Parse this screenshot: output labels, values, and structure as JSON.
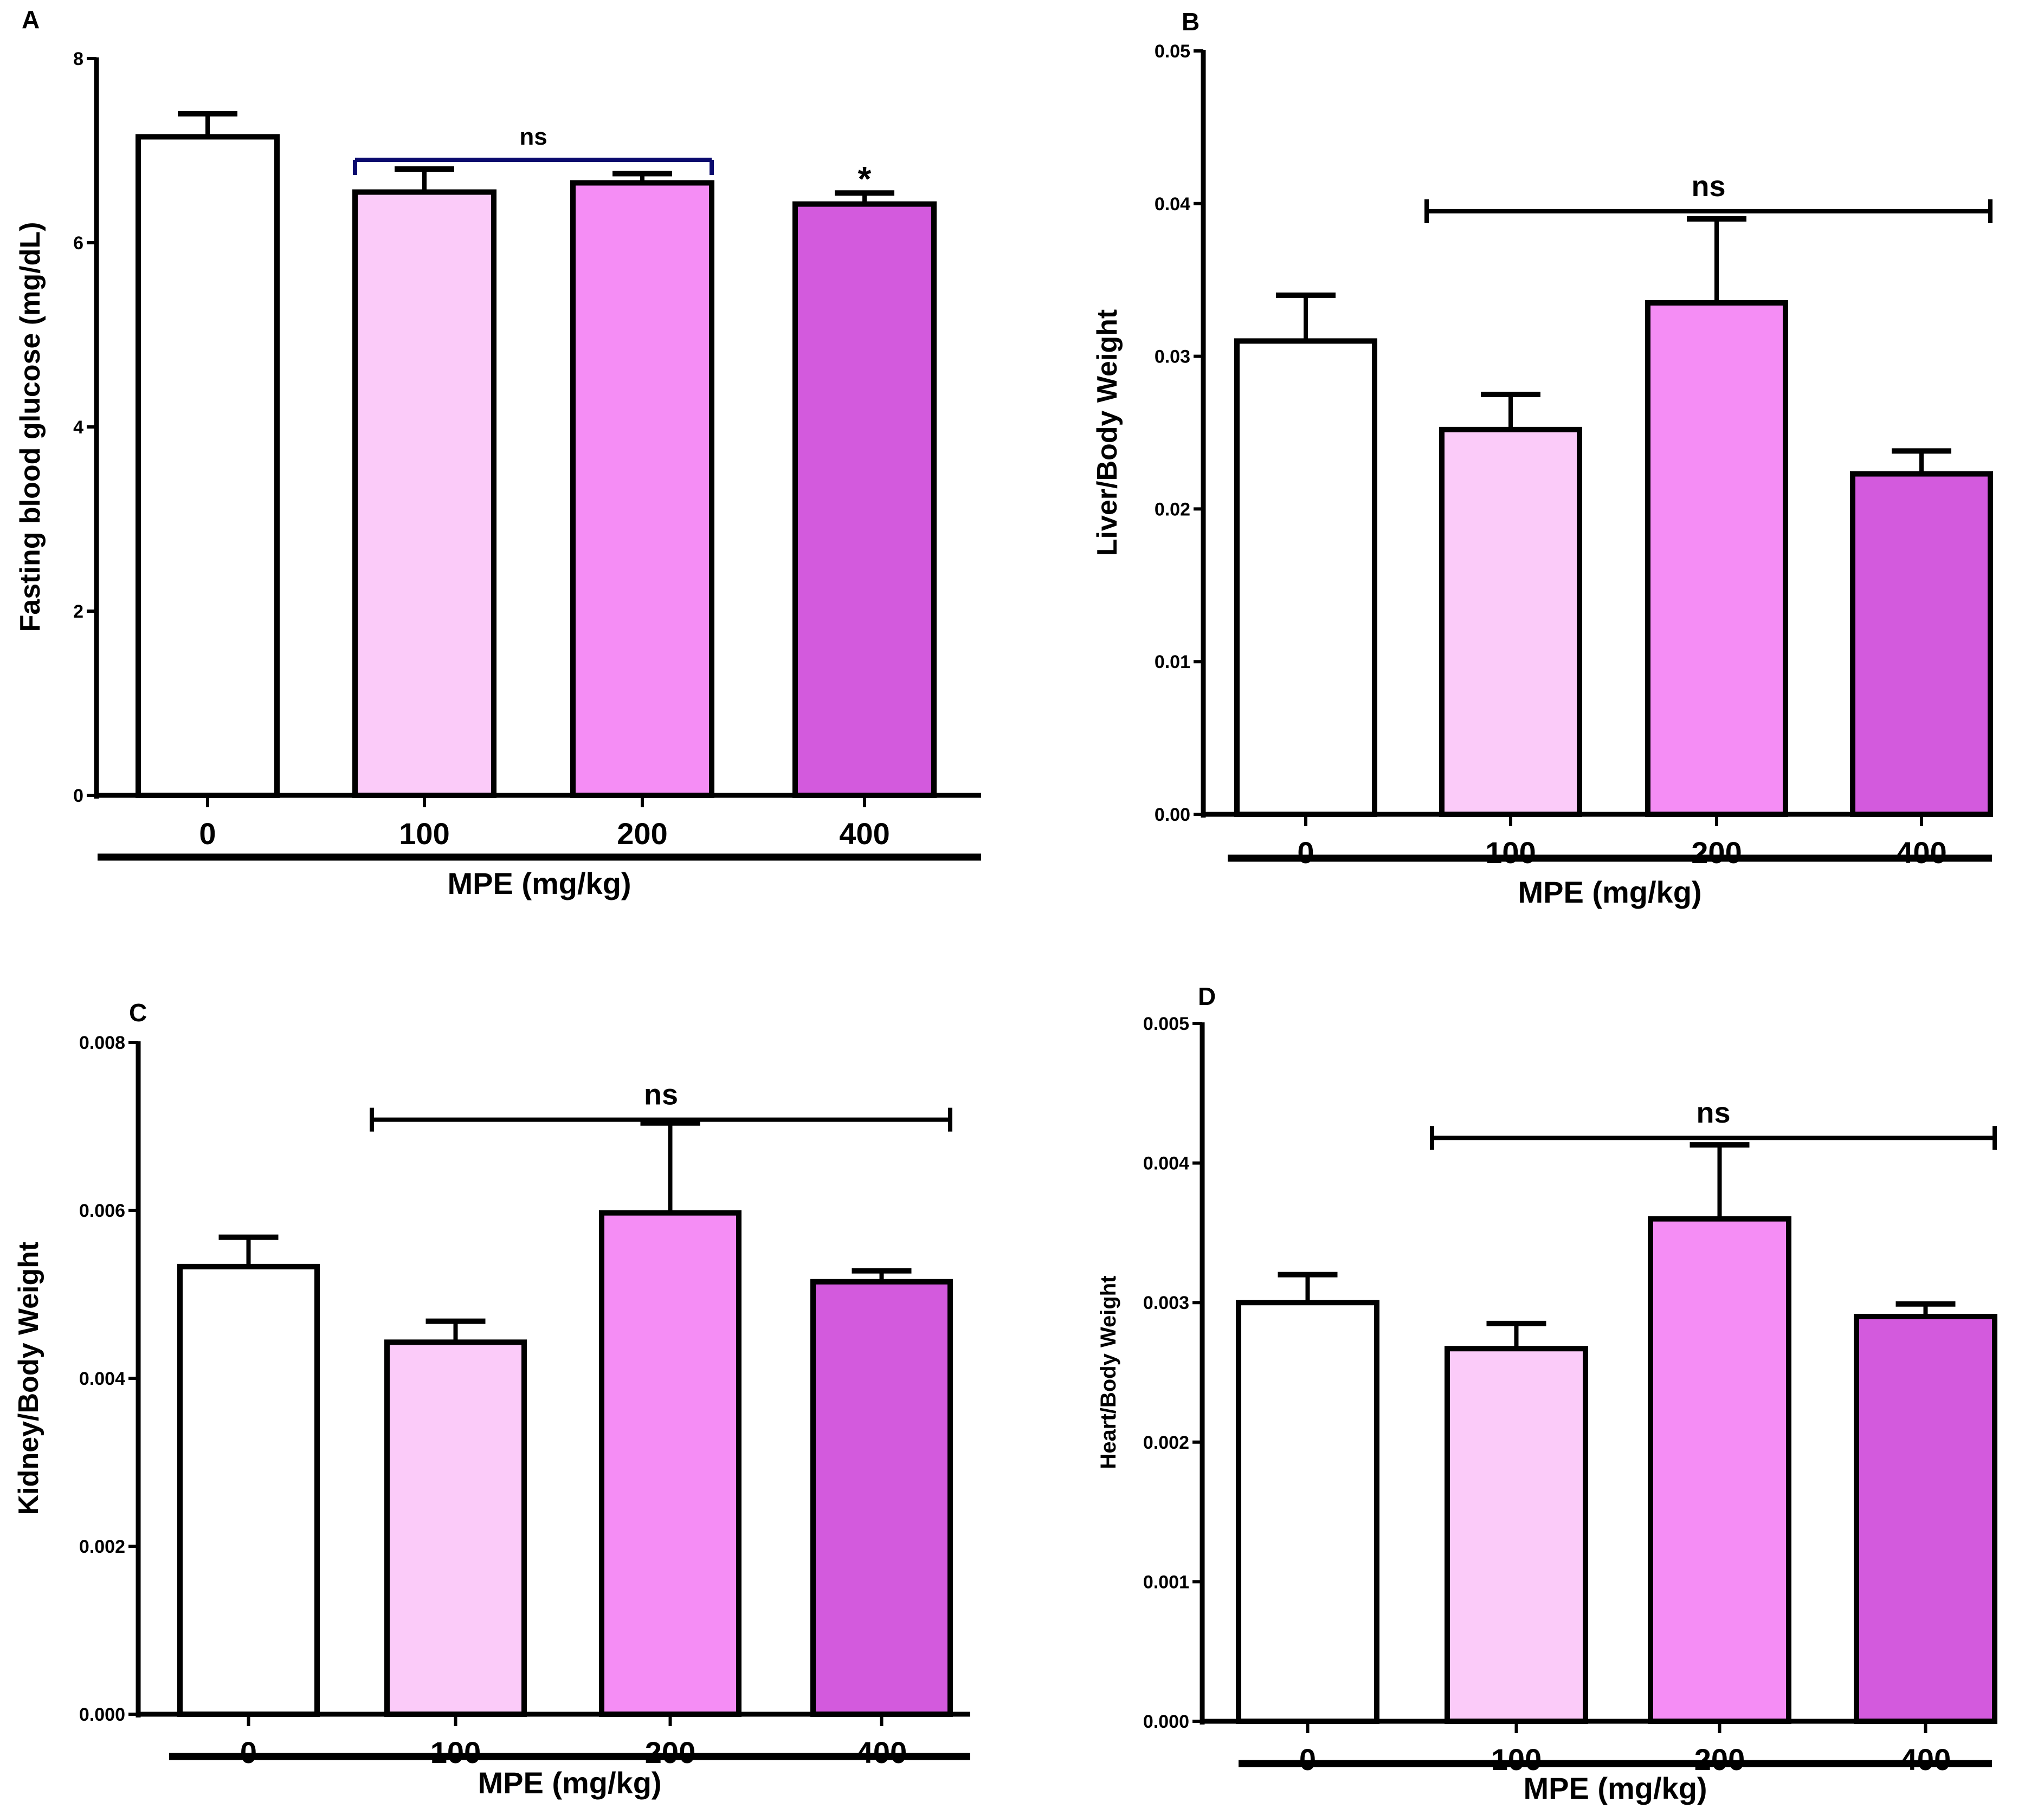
{
  "figure": {
    "x_group_label": "MPE (mg/kg)"
  },
  "chart_data": [
    {
      "panel": "A",
      "type": "bar",
      "categories": [
        "0",
        "100",
        "200",
        "400"
      ],
      "values": [
        7.15,
        6.55,
        6.65,
        6.42
      ],
      "errors": [
        0.25,
        0.25,
        0.1,
        0.12
      ],
      "colors": [
        "#ffffff",
        "#fbcbf9",
        "#f58df5",
        "#d35add"
      ],
      "ylabel": "Fasting blood glucose (mg/dL)",
      "xlabel": "MPE (mg/kg)",
      "ylim": [
        0,
        8
      ],
      "yticks": [
        "0",
        "2",
        "4",
        "6",
        "8"
      ],
      "bracket": {
        "label": "ns",
        "from": 1,
        "to": 2,
        "value": 6.9,
        "color": "#0a0a6e"
      },
      "annotations": [
        {
          "label": "*",
          "category": 3
        }
      ]
    },
    {
      "panel": "B",
      "type": "bar",
      "categories": [
        "0",
        "100",
        "200",
        "400"
      ],
      "values": [
        0.031,
        0.0252,
        0.0335,
        0.0223
      ],
      "errors": [
        0.003,
        0.0023,
        0.0055,
        0.0015
      ],
      "colors": [
        "#ffffff",
        "#fbcbf9",
        "#f58df5",
        "#d35add"
      ],
      "ylabel": "Liver/Body Weight",
      "xlabel": "MPE (mg/kg)",
      "ylim": [
        0,
        0.05
      ],
      "yticks": [
        "0.00",
        "0.01",
        "0.02",
        "0.03",
        "0.04",
        "0.05"
      ],
      "bracket": {
        "label": "ns",
        "from": 1,
        "to": 3,
        "value": 0.0395,
        "color": "#000000"
      },
      "annotations": []
    },
    {
      "panel": "C",
      "type": "bar",
      "categories": [
        "0",
        "100",
        "200",
        "400"
      ],
      "values": [
        0.00533,
        0.00443,
        0.00597,
        0.00515
      ],
      "errors": [
        0.00035,
        0.00025,
        0.00107,
        0.00013
      ],
      "colors": [
        "#ffffff",
        "#fbcbf9",
        "#f58df5",
        "#d35add"
      ],
      "ylabel": "Kidney/Body Weight",
      "xlabel": "MPE (mg/kg)",
      "ylim": [
        0,
        0.008
      ],
      "yticks": [
        "0.000",
        "0.002",
        "0.004",
        "0.006",
        "0.008"
      ],
      "bracket": {
        "label": "ns",
        "from": 1,
        "to": 3,
        "value": 0.00708,
        "color": "#000000"
      },
      "annotations": []
    },
    {
      "panel": "D",
      "type": "bar",
      "categories": [
        "0",
        "100",
        "200",
        "400"
      ],
      "values": [
        0.003,
        0.00267,
        0.0036,
        0.0029
      ],
      "errors": [
        0.0002,
        0.00018,
        0.00053,
        9e-05
      ],
      "colors": [
        "#ffffff",
        "#fbcbf9",
        "#f58df5",
        "#d35add"
      ],
      "ylabel": "Heart/Body Weight",
      "xlabel": "MPE (mg/kg)",
      "ylim": [
        0,
        0.005
      ],
      "yticks": [
        "0.000",
        "0.001",
        "0.002",
        "0.003",
        "0.004",
        "0.005"
      ],
      "bracket": {
        "label": "ns",
        "from": 1,
        "to": 3,
        "value": 0.00418,
        "color": "#000000"
      },
      "annotations": []
    }
  ]
}
